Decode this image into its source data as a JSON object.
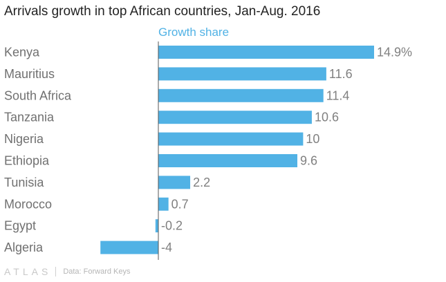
{
  "colors": {
    "bar": "#51b2e5",
    "series_label": "#51b2e5",
    "category_text": "#707070",
    "value_text": "#808080",
    "axis": "#555555"
  },
  "footer": {
    "brand": "ATLAS",
    "source": "Data: Forward Keys"
  },
  "chart_data": {
    "type": "bar",
    "orientation": "horizontal",
    "title": "Arrivals growth in top African countries, Jan-Aug. 2016",
    "series": [
      {
        "name": "Growth share",
        "values": [
          14.9,
          11.6,
          11.4,
          10.6,
          10,
          9.6,
          2.2,
          0.7,
          -0.2,
          -4
        ],
        "labels": [
          "14.9%",
          "11.6",
          "11.4",
          "10.6",
          "10",
          "9.6",
          "2.2",
          "0.7",
          "-0.2",
          "-4"
        ]
      }
    ],
    "categories": [
      "Kenya",
      "Mauritius",
      "South Africa",
      "Tanzania",
      "Nigeria",
      "Ethiopia",
      "Tunisia",
      "Morocco",
      "Egypt",
      "Algeria"
    ],
    "xlim": [
      -4,
      14.9
    ],
    "xlabel": "",
    "ylabel": ""
  }
}
